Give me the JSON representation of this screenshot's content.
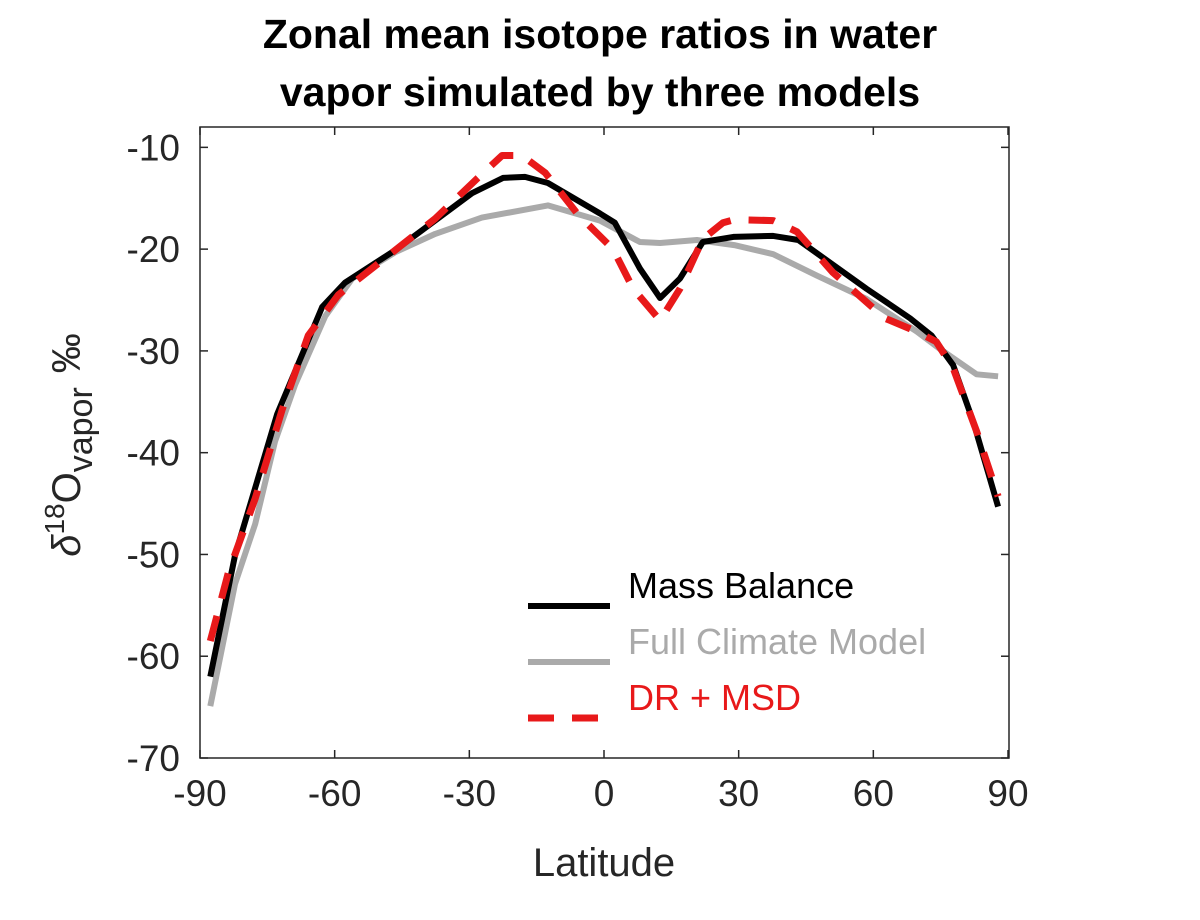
{
  "chart_data": {
    "type": "line",
    "title": [
      "Zonal mean isotope ratios in water",
      "vapor simulated by three models"
    ],
    "xlabel": "Latitude",
    "ylabel": {
      "delta": "δ",
      "superscript": "18",
      "element": "O",
      "subscript": "vapor",
      "unit": "‰"
    },
    "xlim": [
      -90,
      90
    ],
    "ylim": [
      -70,
      -8
    ],
    "xticks": [
      -90,
      -60,
      -30,
      0,
      30,
      60,
      90
    ],
    "yticks": [
      -10,
      -20,
      -30,
      -40,
      -50,
      -60,
      -70
    ],
    "grid": false,
    "legend_position": "bottom-right",
    "series": [
      {
        "name": "Mass Balance",
        "color": "#000000",
        "style": "solid",
        "points": [
          [
            -87.7,
            -62.0
          ],
          [
            -82.2,
            -50.1
          ],
          [
            -72.8,
            -36.2
          ],
          [
            -62.8,
            -25.7
          ],
          [
            -57.7,
            -23.3
          ],
          [
            -46.5,
            -20.1
          ],
          [
            -29.4,
            -14.5
          ],
          [
            -22.5,
            -13.0
          ],
          [
            -17.6,
            -12.9
          ],
          [
            -12.5,
            -13.5
          ],
          [
            -0.9,
            -16.5
          ],
          [
            2.4,
            -17.4
          ],
          [
            8,
            -21.9
          ],
          [
            12.5,
            -24.8
          ],
          [
            16.9,
            -22.9
          ],
          [
            22,
            -19.3
          ],
          [
            28.8,
            -18.8
          ],
          [
            37.7,
            -18.7
          ],
          [
            43.3,
            -19.1
          ],
          [
            58.5,
            -23.9
          ],
          [
            68.2,
            -26.8
          ],
          [
            73,
            -28.5
          ],
          [
            77.8,
            -31.4
          ],
          [
            82.3,
            -37.0
          ],
          [
            87.8,
            -45.3
          ]
        ]
      },
      {
        "name": "Full Climate Model",
        "color": "#aaaaaa",
        "style": "solid",
        "points": [
          [
            -87.7,
            -64.9
          ],
          [
            -82.2,
            -52.9
          ],
          [
            -77.7,
            -47.0
          ],
          [
            -73.3,
            -38.9
          ],
          [
            -68.8,
            -33.3
          ],
          [
            -62.1,
            -26.6
          ],
          [
            -56.1,
            -22.9
          ],
          [
            -46.5,
            -20.3
          ],
          [
            -37.6,
            -18.5
          ],
          [
            -27.2,
            -16.9
          ],
          [
            -12.5,
            -15.7
          ],
          [
            -0.9,
            -17.2
          ],
          [
            8,
            -19.3
          ],
          [
            12.5,
            -19.4
          ],
          [
            20.7,
            -19.1
          ],
          [
            29,
            -19.6
          ],
          [
            37.7,
            -20.5
          ],
          [
            47.4,
            -22.6
          ],
          [
            58.5,
            -24.9
          ],
          [
            69.7,
            -28.1
          ],
          [
            74.8,
            -29.8
          ],
          [
            83,
            -32.3
          ],
          [
            87.8,
            -32.5
          ]
        ]
      },
      {
        "name": "DR + MSD",
        "color": "#e8191a",
        "style": "dashed",
        "points": [
          [
            -87.7,
            -58.5
          ],
          [
            -83.7,
            -51.8
          ],
          [
            -77.7,
            -44.5
          ],
          [
            -71.7,
            -35.8
          ],
          [
            -65.9,
            -28.5
          ],
          [
            -59.2,
            -24.5
          ],
          [
            -46.5,
            -20.1
          ],
          [
            -37.6,
            -17.0
          ],
          [
            -28.1,
            -13.0
          ],
          [
            -22.7,
            -10.8
          ],
          [
            -18.3,
            -10.8
          ],
          [
            -13.1,
            -12.5
          ],
          [
            -5.8,
            -16.6
          ],
          [
            2,
            -20.0
          ],
          [
            6.5,
            -23.9
          ],
          [
            12.5,
            -27.0
          ],
          [
            16.9,
            -23.9
          ],
          [
            22,
            -19.0
          ],
          [
            26.5,
            -17.4
          ],
          [
            29,
            -17.1
          ],
          [
            37.7,
            -17.2
          ],
          [
            43,
            -18.3
          ],
          [
            51,
            -22.3
          ],
          [
            62.6,
            -26.8
          ],
          [
            69.7,
            -28.1
          ],
          [
            74,
            -29.1
          ],
          [
            77.8,
            -31.7
          ],
          [
            83,
            -37.9
          ],
          [
            87.8,
            -44.3
          ]
        ]
      }
    ]
  }
}
